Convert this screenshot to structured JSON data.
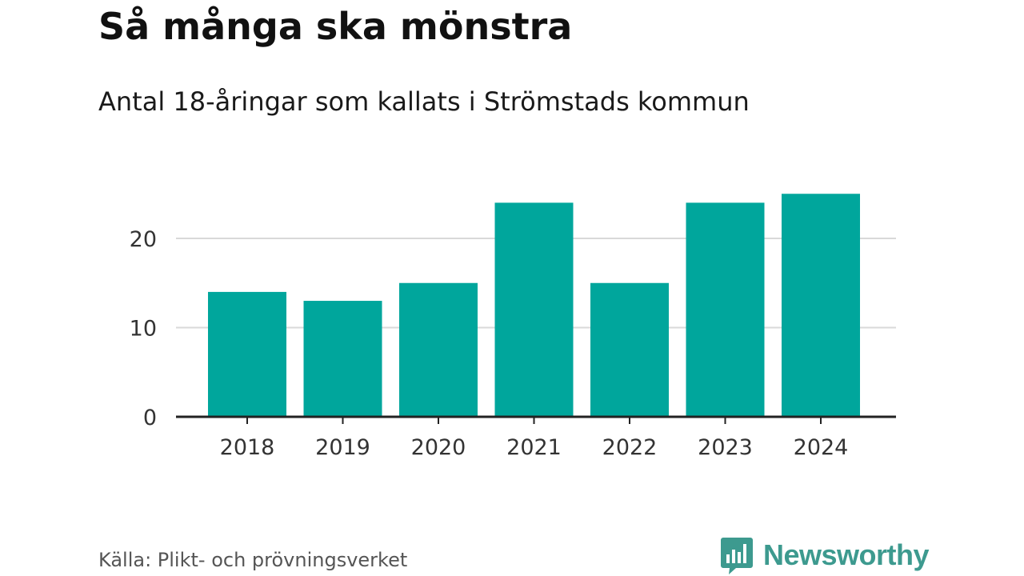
{
  "colors": {
    "bar": "#00a69c",
    "axis": "#222222",
    "grid": "#d9d9d9",
    "tick_text": "#333333",
    "brand": "#3d9a8f"
  },
  "brand": {
    "name": "Newsworthy",
    "logo_icon": "bar-chart-speech-bubble-icon"
  },
  "source": "Källa: Plikt- och prövningsverket",
  "chart_data": {
    "type": "bar",
    "title": "Så många ska mönstra",
    "subtitle": "Antal 18-åringar som kallats i Strömstads kommun",
    "categories": [
      "2018",
      "2019",
      "2020",
      "2021",
      "2022",
      "2023",
      "2024"
    ],
    "values": [
      14,
      13,
      15,
      24,
      15,
      24,
      25
    ],
    "xlabel": "",
    "ylabel": "",
    "ylim": [
      0,
      25
    ],
    "yticks": [
      0,
      10,
      20
    ],
    "grid": true,
    "legend": "none"
  }
}
